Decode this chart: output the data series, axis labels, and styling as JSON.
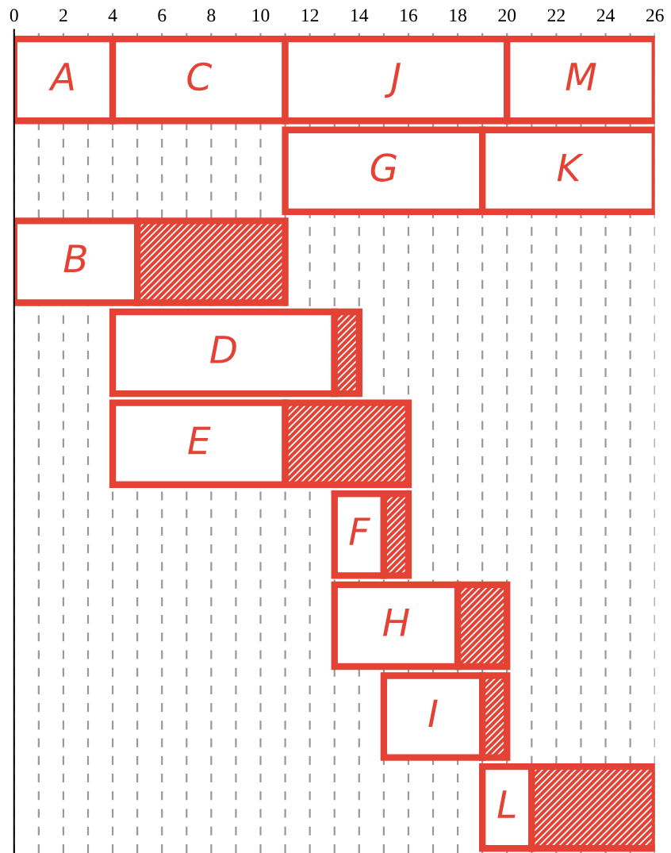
{
  "chart_data": {
    "type": "bar",
    "orientation": "horizontal",
    "categories": [
      null,
      null,
      null,
      null,
      null,
      null,
      null,
      null,
      null
    ],
    "series": [
      {
        "color": "#e34234",
        "base": [
          0,
          11,
          0,
          4,
          4,
          13,
          13,
          15,
          19
        ],
        "values": [
          4,
          8,
          5,
          9,
          7,
          2,
          5,
          4,
          2
        ],
        "value_labels": [
          "A",
          "G",
          "B",
          "D",
          "E",
          "F",
          "H",
          "I",
          "L"
        ]
      },
      {
        "color": "#e34234",
        "base": [
          4,
          19,
          null,
          null,
          null,
          null,
          null,
          null,
          null
        ],
        "values": [
          7,
          7,
          null,
          null,
          null,
          null,
          null,
          null,
          null
        ],
        "value_labels": [
          "C",
          "K",
          null,
          null,
          null,
          null,
          null,
          null,
          null
        ]
      },
      {
        "color": "#e34234",
        "base": [
          11,
          null,
          null,
          null,
          null,
          null,
          null,
          null,
          null
        ],
        "values": [
          9,
          null,
          null,
          null,
          null,
          null,
          null,
          null,
          null
        ],
        "value_labels": [
          "J",
          null,
          null,
          null,
          null,
          null,
          null,
          null,
          null
        ]
      },
      {
        "color": "#e34234",
        "base": [
          20,
          null,
          null,
          null,
          null,
          null,
          null,
          null,
          null
        ],
        "values": [
          6,
          null,
          null,
          null,
          null,
          null,
          null,
          null,
          null
        ],
        "value_labels": [
          "M",
          null,
          null,
          null,
          null,
          null,
          null,
          null,
          null
        ]
      },
      {
        "color": "#e34234",
        "base": [
          null,
          null,
          5,
          13,
          11,
          15,
          18,
          19,
          21
        ],
        "values": [
          null,
          null,
          6,
          1,
          5,
          1,
          2,
          1,
          5
        ]
      }
    ],
    "xlim": [
      0,
      26
    ],
    "xticks": [
      0,
      {
        "value": 1,
        "label": null
      },
      2,
      {
        "value": 3,
        "label": null
      },
      4,
      {
        "value": 5,
        "label": null
      },
      6,
      {
        "value": 7,
        "label": null
      },
      8,
      {
        "value": 9,
        "label": null
      },
      10,
      {
        "value": 11,
        "label": null
      },
      12,
      {
        "value": 13,
        "label": null
      },
      14,
      {
        "value": 15,
        "label": null
      },
      16,
      {
        "value": 17,
        "label": null
      },
      18,
      {
        "value": 19,
        "label": null
      },
      20,
      {
        "value": 21,
        "label": null
      },
      22,
      {
        "value": 23,
        "label": null
      },
      24,
      {
        "value": 25,
        "label": null
      },
      26
    ],
    "grid": "x",
    "tick_labels": "x"
  }
}
